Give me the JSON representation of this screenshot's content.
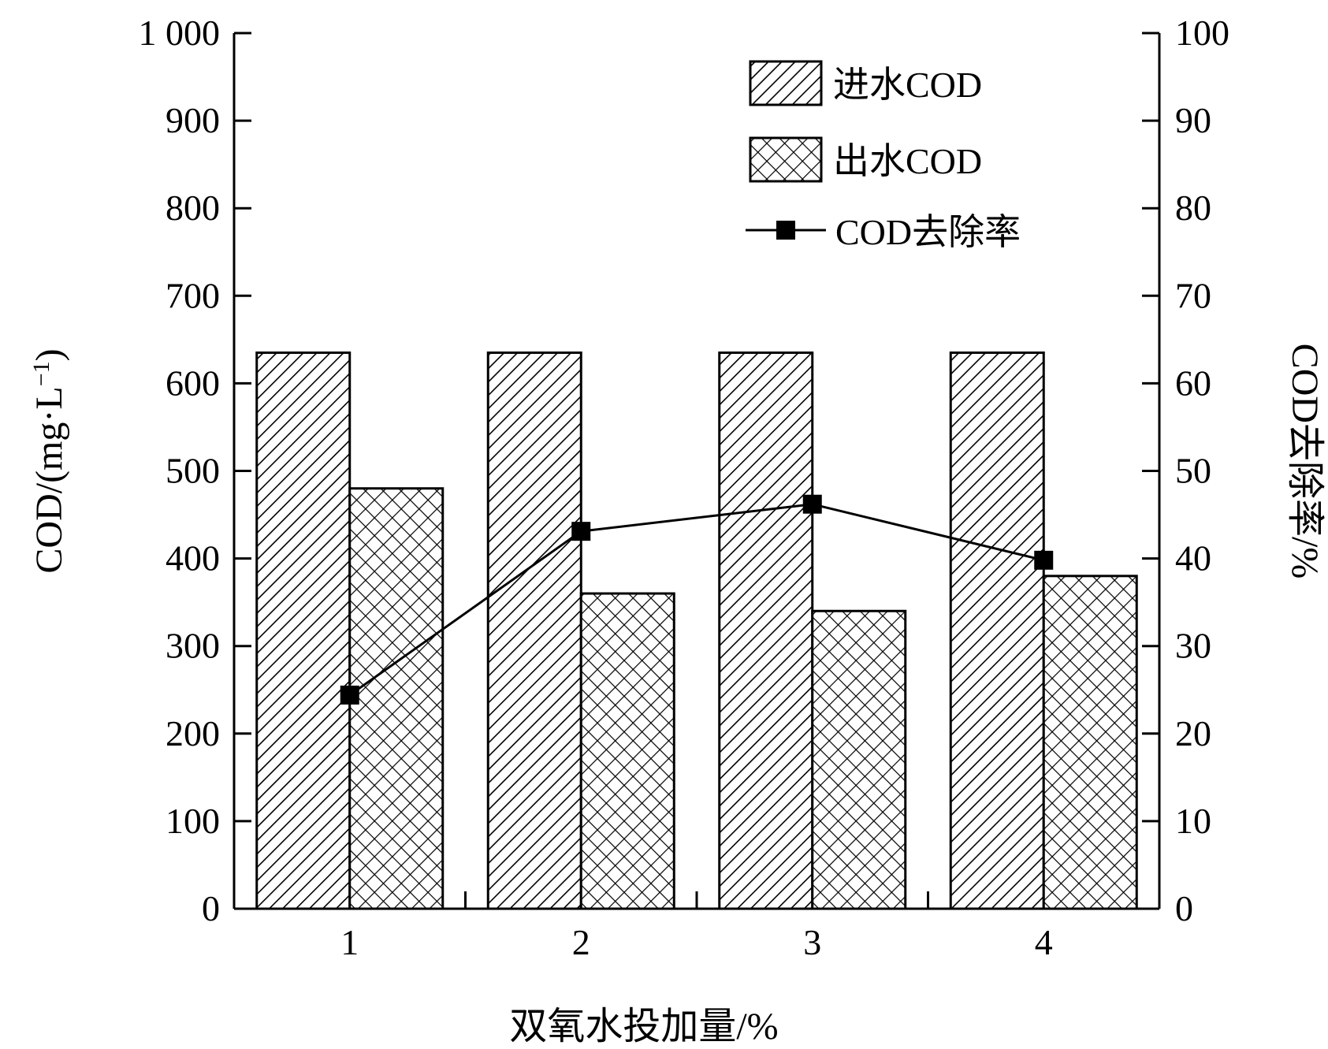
{
  "chart_data": {
    "type": "bar",
    "categories": [
      "1",
      "2",
      "3",
      "4"
    ],
    "series": [
      {
        "name": "进水COD",
        "axis": "left",
        "kind": "bar",
        "pattern": "diagonal-hatch",
        "values": [
          635,
          635,
          635,
          635
        ]
      },
      {
        "name": "出水COD",
        "axis": "left",
        "kind": "bar",
        "pattern": "cross-hatch",
        "values": [
          480,
          360,
          340,
          380
        ]
      },
      {
        "name": "COD去除率",
        "axis": "right",
        "kind": "line",
        "marker": "square",
        "values": [
          24.4,
          43.1,
          46.2,
          39.8
        ]
      }
    ],
    "xlabel": "双氧水投加量/%",
    "ylabel_left": "COD/(mg·L",
    "ylabel_left_sup": "−1",
    "ylabel_left_close": ")",
    "ylabel_right": "COD去除率/%",
    "ylim_left": [
      0,
      1000
    ],
    "ylim_right": [
      0,
      100
    ],
    "yticks_left": [
      "0",
      "100",
      "200",
      "300",
      "400",
      "500",
      "600",
      "700",
      "800",
      "900",
      "1 000"
    ],
    "yticks_right": [
      "0",
      "10",
      "20",
      "30",
      "40",
      "50",
      "60",
      "70",
      "80",
      "90",
      "100"
    ],
    "legend_position": "top-right",
    "grid": false,
    "colors": {
      "ink": "#000000",
      "background": "#ffffff"
    }
  }
}
